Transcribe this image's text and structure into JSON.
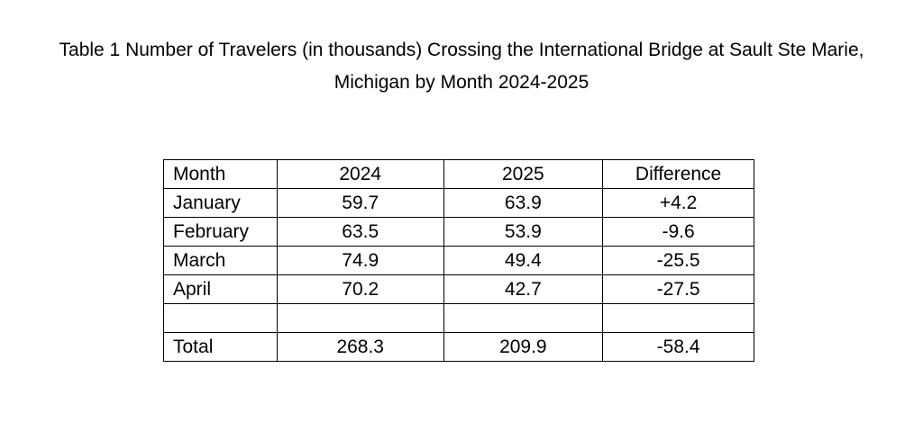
{
  "caption": {
    "line1": "Table 1 Number of Travelers (in thousands) Crossing the International Bridge at Sault Ste Marie,",
    "line2": "Michigan by Month 2024-2025"
  },
  "table": {
    "headers": [
      "Month",
      "2024",
      "2025",
      "Difference"
    ],
    "rows": [
      [
        "January",
        "59.7",
        "63.9",
        "+4.2"
      ],
      [
        "February",
        "63.5",
        "53.9",
        "-9.6"
      ],
      [
        "March",
        "74.9",
        "49.4",
        "-25.5"
      ],
      [
        "April",
        "70.2",
        "42.7",
        "-27.5"
      ],
      [
        "",
        "",
        "",
        ""
      ],
      [
        "Total",
        "268.3",
        "209.9",
        "-58.4"
      ]
    ]
  }
}
